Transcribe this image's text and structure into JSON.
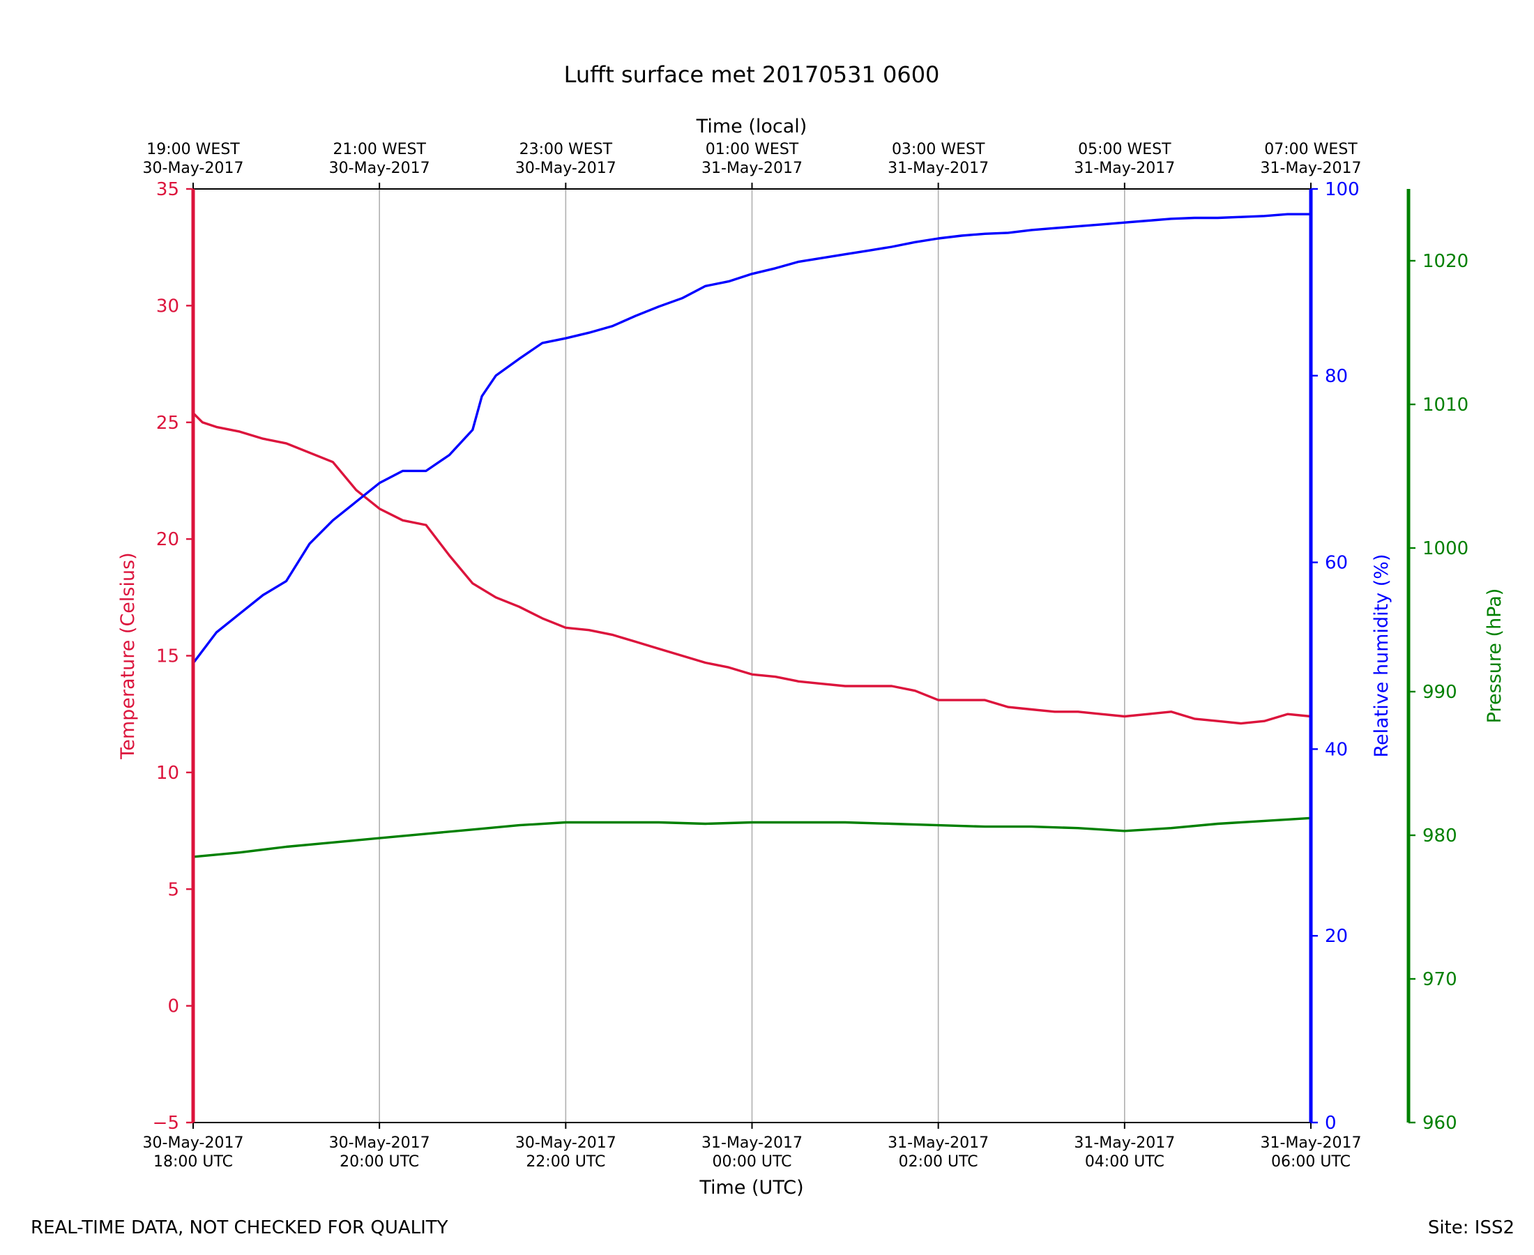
{
  "chart_data": {
    "type": "line",
    "title": "Lufft surface met 20170531 0600",
    "xlabel": "Time (UTC)",
    "xlabel_top": "Time (local)",
    "x_ticks_bottom": [
      {
        "x": 0,
        "line1": "30-May-2017",
        "line2": "18:00 UTC"
      },
      {
        "x": 2,
        "line1": "30-May-2017",
        "line2": "20:00 UTC"
      },
      {
        "x": 4,
        "line1": "30-May-2017",
        "line2": "22:00 UTC"
      },
      {
        "x": 6,
        "line1": "31-May-2017",
        "line2": "00:00 UTC"
      },
      {
        "x": 8,
        "line1": "31-May-2017",
        "line2": "02:00 UTC"
      },
      {
        "x": 10,
        "line1": "31-May-2017",
        "line2": "04:00 UTC"
      },
      {
        "x": 12,
        "line1": "31-May-2017",
        "line2": "06:00 UTC"
      }
    ],
    "x_ticks_top": [
      {
        "x": 0,
        "line1": "19:00 WEST",
        "line2": "30-May-2017"
      },
      {
        "x": 2,
        "line1": "21:00 WEST",
        "line2": "30-May-2017"
      },
      {
        "x": 4,
        "line1": "23:00 WEST",
        "line2": "30-May-2017"
      },
      {
        "x": 6,
        "line1": "01:00 WEST",
        "line2": "31-May-2017"
      },
      {
        "x": 8,
        "line1": "03:00 WEST",
        "line2": "31-May-2017"
      },
      {
        "x": 10,
        "line1": "05:00 WEST",
        "line2": "31-May-2017"
      },
      {
        "x": 12,
        "line1": "07:00 WEST",
        "line2": "31-May-2017"
      }
    ],
    "xlim": [
      0,
      12
    ],
    "grid": "vertical at x ticks",
    "axes": [
      {
        "name": "temperature",
        "label": "Temperature (Celsius)",
        "side": "left",
        "color": "#dc143c",
        "ylim": [
          -5,
          35
        ],
        "ticks": [
          -5,
          0,
          5,
          10,
          15,
          20,
          25,
          30,
          35
        ],
        "tick_labels": [
          "−5",
          "0",
          "5",
          "10",
          "15",
          "20",
          "25",
          "30",
          "35"
        ]
      },
      {
        "name": "humidity",
        "label": "Relative humidity (%)",
        "side": "right",
        "color": "#0000ff",
        "ylim": [
          0,
          100
        ],
        "ticks": [
          0,
          20,
          40,
          60,
          80,
          100
        ],
        "tick_labels": [
          "0",
          "20",
          "40",
          "60",
          "80",
          "100"
        ]
      },
      {
        "name": "pressure",
        "label": "Pressure (hPa)",
        "side": "right-outer",
        "color": "#008000",
        "ylim": [
          960,
          1025
        ],
        "ticks": [
          960,
          970,
          980,
          990,
          1000,
          1010,
          1020
        ],
        "tick_labels": [
          "960",
          "970",
          "980",
          "990",
          "1000",
          "1010",
          "1020"
        ]
      }
    ],
    "series": [
      {
        "axis": "temperature",
        "color": "#dc143c",
        "x": [
          0,
          0.1,
          0.25,
          0.5,
          0.75,
          1.0,
          1.25,
          1.5,
          1.75,
          2.0,
          2.25,
          2.5,
          2.75,
          3.0,
          3.25,
          3.5,
          3.75,
          4.0,
          4.25,
          4.5,
          4.75,
          5.0,
          5.25,
          5.5,
          5.75,
          6.0,
          6.25,
          6.5,
          6.75,
          7.0,
          7.25,
          7.5,
          7.75,
          8.0,
          8.25,
          8.5,
          8.75,
          9.0,
          9.25,
          9.5,
          9.75,
          10.0,
          10.25,
          10.5,
          10.75,
          11.0,
          11.25,
          11.5,
          11.75,
          12.0
        ],
        "y": [
          25.4,
          25.0,
          24.8,
          24.6,
          24.3,
          24.1,
          23.7,
          23.3,
          22.1,
          21.3,
          20.8,
          20.6,
          19.3,
          18.1,
          17.5,
          17.1,
          16.6,
          16.2,
          16.1,
          15.9,
          15.6,
          15.3,
          15.0,
          14.7,
          14.5,
          14.2,
          14.1,
          13.9,
          13.8,
          13.7,
          13.7,
          13.7,
          13.5,
          13.1,
          13.1,
          13.1,
          12.8,
          12.7,
          12.6,
          12.6,
          12.5,
          12.4,
          12.5,
          12.6,
          12.3,
          12.2,
          12.1,
          12.2,
          12.5,
          12.4
        ]
      },
      {
        "axis": "humidity",
        "color": "#0000ff",
        "x": [
          0,
          0.25,
          0.5,
          0.75,
          1.0,
          1.25,
          1.5,
          1.75,
          2.0,
          2.25,
          2.5,
          2.75,
          3.0,
          3.1,
          3.25,
          3.5,
          3.75,
          4.0,
          4.25,
          4.5,
          4.75,
          5.0,
          5.25,
          5.5,
          5.75,
          6.0,
          6.25,
          6.5,
          6.75,
          7.0,
          7.25,
          7.5,
          7.75,
          8.0,
          8.25,
          8.5,
          8.75,
          9.0,
          9.25,
          9.5,
          9.75,
          10.0,
          10.25,
          10.5,
          10.75,
          11.0,
          11.25,
          11.5,
          11.75,
          12.0
        ],
        "y": [
          49.2,
          52.5,
          54.5,
          56.5,
          58.0,
          62.0,
          64.5,
          66.5,
          68.5,
          69.8,
          69.8,
          71.5,
          74.2,
          77.8,
          80.0,
          81.8,
          83.5,
          84.0,
          84.6,
          85.3,
          86.4,
          87.4,
          88.3,
          89.6,
          90.1,
          90.9,
          91.5,
          92.2,
          92.6,
          93.0,
          93.4,
          93.8,
          94.3,
          94.7,
          95.0,
          95.2,
          95.3,
          95.6,
          95.8,
          96.0,
          96.2,
          96.4,
          96.6,
          96.8,
          96.9,
          96.9,
          97.0,
          97.1,
          97.3,
          97.3
        ]
      },
      {
        "axis": "pressure",
        "color": "#008000",
        "x": [
          0,
          0.5,
          1.0,
          1.5,
          2.0,
          2.5,
          3.0,
          3.5,
          4.0,
          4.5,
          5.0,
          5.5,
          6.0,
          6.5,
          7.0,
          7.5,
          8.0,
          8.5,
          9.0,
          9.5,
          10.0,
          10.5,
          11.0,
          11.5,
          12.0
        ],
        "y": [
          978.5,
          978.8,
          979.2,
          979.5,
          979.8,
          980.1,
          980.4,
          980.7,
          980.9,
          980.9,
          980.9,
          980.8,
          980.9,
          980.9,
          980.9,
          980.8,
          980.7,
          980.6,
          980.6,
          980.5,
          980.3,
          980.5,
          980.8,
          981.0,
          981.2
        ]
      }
    ]
  },
  "footer": {
    "left": "REAL-TIME DATA, NOT CHECKED FOR QUALITY",
    "right": "Site: ISS2"
  }
}
